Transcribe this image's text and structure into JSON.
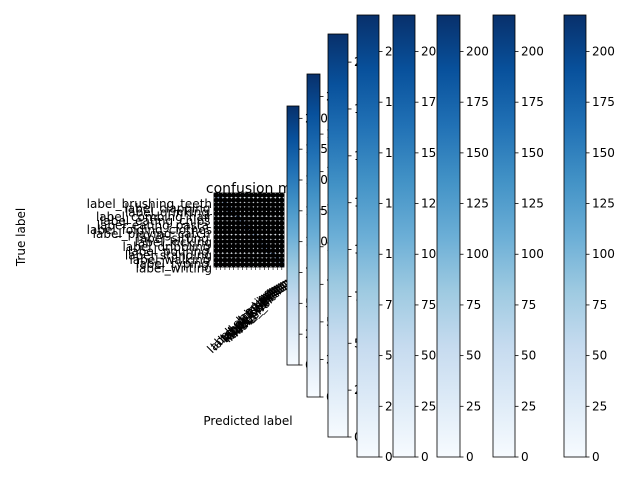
{
  "chart_data": {
    "type": "heatmap",
    "title": "confusion ma",
    "xlabel": "Predicted label",
    "ylabel": "True label",
    "colormap": "Blues",
    "row_labels": [
      "label_brushing_teeth",
      "label_clapping",
      "label_drinking",
      "label_combing_hair",
      "label_eating_chips",
      "label_eating_pasta",
      "label_folding_clothes",
      "label_playing_catch",
      "label_sitting",
      "label_kicking",
      "label_dribbling",
      "label_pouring",
      "label_standing",
      "label_walking",
      "label_typing",
      "label_writing"
    ],
    "col_labels": [
      "label_clapping",
      "label_drinking",
      "label_eating",
      "label_folding",
      "label_kicking",
      "label_typing",
      "label_pouring",
      "label_walking",
      "label_writing",
      "label_sitting"
    ],
    "colorbars": [
      {
        "range": [
          0,
          210
        ],
        "ticks": [
          "0",
          "25",
          "50",
          "75",
          "100",
          "125",
          "150",
          "175",
          "200"
        ]
      },
      {
        "range": [
          0,
          215
        ],
        "ticks": [
          "0",
          "25",
          "50",
          "75",
          "100",
          "125",
          "150",
          "175",
          "200"
        ]
      },
      {
        "range": [
          0,
          215
        ],
        "ticks": [
          "0",
          "25",
          "50",
          "75",
          "100",
          "125",
          "150",
          "175",
          "200"
        ]
      },
      {
        "range": [
          0,
          218
        ],
        "ticks": [
          "0",
          "25",
          "50",
          "75",
          "100",
          "125",
          "150",
          "175",
          "200"
        ]
      },
      {
        "range": [
          0,
          218
        ],
        "ticks": [
          "0",
          "25",
          "50",
          "75",
          "100",
          "125",
          "150",
          "175",
          "200"
        ]
      },
      {
        "range": [
          0,
          218
        ],
        "ticks": [
          "0",
          "25",
          "50",
          "75",
          "100",
          "125",
          "150",
          "175",
          "200"
        ]
      },
      {
        "range": [
          0,
          218
        ],
        "ticks": [
          "0",
          "25",
          "50",
          "75",
          "100",
          "125",
          "150",
          "175",
          "200"
        ]
      },
      {
        "range": [
          0,
          218
        ],
        "ticks": [
          "0",
          "25",
          "50",
          "75",
          "100",
          "125",
          "150",
          "175",
          "200"
        ]
      }
    ]
  }
}
